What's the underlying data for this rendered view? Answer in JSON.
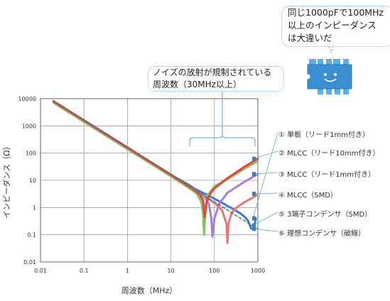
{
  "chart_data": {
    "type": "line",
    "xscale": "log",
    "yscale": "log",
    "xlabel": "周波数（MHz）",
    "ylabel": "インピーダンス（Ω）",
    "xlim": [
      0.01,
      1000
    ],
    "ylim": [
      0.01,
      10000
    ],
    "x_ticks": [
      "0.01",
      "0.1",
      "1",
      "10",
      "100",
      "1000"
    ],
    "y_ticks": [
      "0.01",
      "0.1",
      "1",
      "10",
      "100",
      "1000",
      "10000"
    ],
    "grid": true,
    "series": [
      {
        "name": "① 単板（リード1mm付き）",
        "color": "#3a7fc4",
        "x": [
          0.02,
          0.1,
          1,
          10,
          25,
          35,
          50,
          70,
          100,
          150,
          200,
          300,
          400,
          500,
          600,
          700,
          800,
          900
        ],
        "y": [
          8000,
          1600,
          160,
          16,
          7,
          4.9,
          3.7,
          2.9,
          2.1,
          1.5,
          1.15,
          0.8,
          0.6,
          0.45,
          0.32,
          0.17,
          0.17,
          0.4
        ]
      },
      {
        "name": "② MLCC（リード10mm付き）",
        "color": "#e8443a",
        "x": [
          0.02,
          0.1,
          1,
          10,
          30,
          45,
          55,
          60,
          65,
          80,
          100,
          200,
          500,
          1000
        ],
        "y": [
          8000,
          1600,
          160,
          16,
          5.2,
          3.2,
          1.8,
          0.45,
          1.5,
          3.2,
          5.0,
          12,
          32,
          62
        ]
      },
      {
        "name": "③ MLCC（リード1mm付き）",
        "color": "#a77fd8",
        "x": [
          0.02,
          0.1,
          1,
          10,
          30,
          60,
          75,
          85,
          90,
          100,
          130,
          200,
          500,
          1000
        ],
        "y": [
          8000,
          1600,
          160,
          16,
          5.2,
          2.4,
          1.3,
          0.4,
          0.085,
          0.4,
          1.4,
          3.5,
          9,
          17
        ]
      },
      {
        "name": "④ MLCC（SMD）",
        "color": "#e87878",
        "x": [
          0.02,
          0.1,
          1,
          10,
          30,
          100,
          150,
          190,
          200,
          210,
          250,
          350,
          500,
          800,
          1000
        ],
        "y": [
          8000,
          1600,
          160,
          16,
          5.2,
          1.5,
          0.8,
          0.25,
          0.05,
          0.25,
          0.65,
          1.1,
          1.6,
          2.4,
          3.2
        ]
      },
      {
        "name": "⑤ 3端子コンデンサ（SMD）",
        "color": "#82c46a",
        "x": [
          0.02,
          0.1,
          1,
          10,
          25,
          40,
          50,
          55,
          58,
          62,
          70,
          100,
          200,
          500,
          1000
        ],
        "y": [
          7000,
          1400,
          140,
          14,
          5.5,
          3.2,
          1.6,
          0.6,
          0.1,
          0.6,
          2.8,
          6.0,
          11,
          27,
          50
        ]
      },
      {
        "name": "⑥ 理想コンデンサ（破線）",
        "color": "#5c6f86",
        "x": [
          0.02,
          1000
        ],
        "y": [
          8000,
          0.16
        ]
      }
    ]
  },
  "callouts": {
    "regulated_band": [
      "ノイズの放射が規制されている",
      "周波数（30MHz以上）"
    ],
    "chip_comment": [
      "同じ1000pFで100MHz",
      "以上のインピーダンス",
      "は大違いだ"
    ]
  },
  "mascot": {
    "icon": "smiling-capacitor-chip-icon",
    "body_color": "#5ab0e6"
  }
}
